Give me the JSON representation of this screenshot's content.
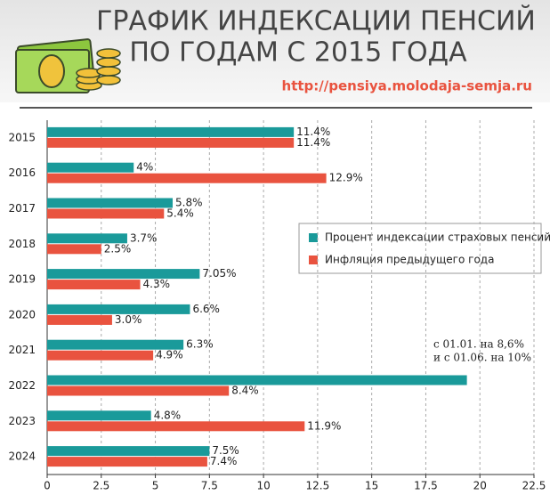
{
  "chart_data": {
    "type": "hbar",
    "title": [
      "ГРАФИК ИНДЕКСАЦИИ ПЕНСИЙ",
      "ПО ГОДАМ С 2015 ГОДА"
    ],
    "source": "http://pensiya.molodaja-semja.ru",
    "categories": [
      "2015",
      "2016",
      "2017",
      "2018",
      "2019",
      "2020",
      "2021",
      "2022",
      "2023",
      "2024"
    ],
    "series": [
      {
        "name": "Процент индексации страховых пенсий",
        "color": "#1a9a9a",
        "values": [
          11.4,
          4,
          5.8,
          3.7,
          7.05,
          6.6,
          6.3,
          19.4,
          4.8,
          7.5
        ],
        "value_labels": [
          "11.4%",
          "4%",
          "5.8%",
          "3.7%",
          "7.05%",
          "6.6%",
          "6.3%",
          null,
          "4.8%",
          "7.5%"
        ]
      },
      {
        "name": "Инфляция предыдущего года",
        "color": "#e9533f",
        "values": [
          11.4,
          12.9,
          5.4,
          2.5,
          4.3,
          3.0,
          4.9,
          8.4,
          11.9,
          7.4
        ],
        "value_labels": [
          "11.4%",
          "12.9%",
          "5.4%",
          "2.5%",
          "4.3%",
          "3.0%",
          "4.9%",
          "8.4%",
          "11.9%",
          "7.4%"
        ]
      }
    ],
    "annotation": [
      "с 01.01. на 8,6%",
      "и с 01.06. на 10%"
    ],
    "xlim": [
      0,
      22.5
    ],
    "xticks": [
      0,
      2.5,
      5,
      7.5,
      10,
      12.5,
      15,
      17.5,
      20,
      22.5
    ],
    "grid": true
  }
}
